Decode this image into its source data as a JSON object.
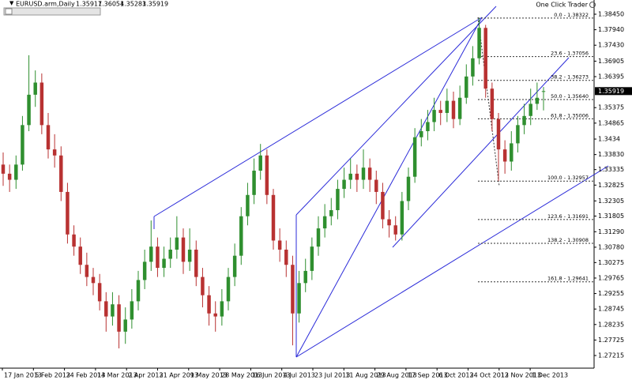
{
  "chart_data": {
    "type": "candlestick",
    "title": "EURUSD.arm,Daily",
    "header_ohlc": [
      1.35917,
      1.36054,
      1.35283,
      1.35919
    ],
    "trader_label": "One Click Trader",
    "current_price": 1.35919,
    "up_color": "#2f8f2f",
    "down_color": "#b83232",
    "ylim": [
      1.26799,
      1.38918
    ],
    "yticks": [
      {
        "value": 1.3845,
        "label": "1.38450"
      },
      {
        "value": 1.3794,
        "label": "1.37940"
      },
      {
        "value": 1.3743,
        "label": "1.37430"
      },
      1.36905,
      1.36395,
      1.35375,
      1.34865,
      1.3434,
      {
        "value": 1.3383,
        "label": "1.33830"
      },
      1.33335,
      1.32825,
      1.32305,
      1.31805,
      {
        "value": 1.3129,
        "label": "1.31290"
      },
      {
        "value": 1.3078,
        "label": "1.30780"
      },
      1.30275,
      1.29765,
      1.29255,
      1.28745,
      1.28235,
      1.27725,
      1.27215
    ],
    "x_tick_labels": [
      "17 Jan 2013",
      "5 Feb 2013",
      "24 Feb 2013",
      "14 Mar 2013",
      "2 Apr 2013",
      "21 Apr 2013",
      "9 May 2013",
      "28 May 2013",
      "16 Jun 2013",
      "4 Jul 2013",
      "23 Jul 2013",
      "11 Aug 2013",
      "29 Aug 2013",
      "17 Sep 2013",
      "6 Oct 2013",
      "24 Oct 2013",
      "12 Nov 2013",
      "1 Dec 2013"
    ],
    "fib_levels": [
      {
        "label": "0.0 - 1.38322",
        "value": 1.38322
      },
      {
        "label": "23.6 - 1.37056",
        "value": 1.37056
      },
      {
        "label": "38.2 - 1.36273",
        "value": 1.36273
      },
      {
        "label": "50.0 - 1.35640",
        "value": 1.3564
      },
      {
        "label": "61.8 - 1.35006",
        "value": 1.35006
      },
      {
        "label": "100.0 - 1.32957",
        "value": 1.32957
      },
      {
        "label": "123.6 - 1.31691",
        "value": 1.31691
      },
      {
        "label": "138.2 - 1.30908",
        "value": 1.30908
      },
      {
        "label": "161.8 - 1.29641",
        "value": 1.29641
      }
    ],
    "open": [
      1.335,
      1.332,
      1.33,
      1.335,
      1.348,
      1.358,
      1.362,
      1.348,
      1.34,
      1.338,
      1.326,
      1.312,
      1.308,
      1.302,
      1.298,
      1.296,
      1.29,
      1.285,
      1.289,
      1.28,
      1.284,
      1.29,
      1.297,
      1.303,
      1.308,
      1.301,
      1.304,
      1.307,
      1.311,
      1.303,
      1.307,
      1.298,
      1.292,
      1.286,
      1.285,
      1.29,
      1.298,
      1.305,
      1.318,
      1.325,
      1.333,
      1.338,
      1.325,
      1.31,
      1.307,
      1.302,
      1.286,
      1.296,
      1.3,
      1.308,
      1.314,
      1.318,
      1.32,
      1.327,
      1.33,
      1.332,
      1.33,
      1.334,
      1.33,
      1.326,
      1.317,
      1.315,
      1.312,
      1.323,
      1.331,
      1.344,
      1.346,
      1.349,
      1.353,
      1.352,
      1.356,
      1.35,
      1.357,
      1.364,
      1.37,
      1.38,
      1.36,
      1.35,
      1.34,
      1.336,
      1.342,
      1.348,
      1.351,
      1.355,
      1.35917
    ],
    "high": [
      1.339,
      1.335,
      1.338,
      1.351,
      1.371,
      1.366,
      1.365,
      1.352,
      1.345,
      1.341,
      1.329,
      1.315,
      1.311,
      1.306,
      1.301,
      1.299,
      1.293,
      1.293,
      1.292,
      1.288,
      1.294,
      1.3,
      1.307,
      1.3166,
      1.311,
      1.308,
      1.311,
      1.318,
      1.314,
      1.314,
      1.31,
      1.301,
      1.295,
      1.29,
      1.294,
      1.301,
      1.309,
      1.321,
      1.329,
      1.337,
      1.3418,
      1.34,
      1.327,
      1.314,
      1.31,
      1.305,
      1.3,
      1.304,
      1.311,
      1.318,
      1.322,
      1.324,
      1.33,
      1.334,
      1.337,
      1.335,
      1.34,
      1.337,
      1.333,
      1.329,
      1.32,
      1.318,
      1.326,
      1.334,
      1.347,
      1.35,
      1.353,
      1.357,
      1.356,
      1.36,
      1.359,
      1.361,
      1.368,
      1.374,
      1.3832,
      1.381,
      1.362,
      1.352,
      1.343,
      1.346,
      1.351,
      1.355,
      1.36,
      1.362,
      1.36054
    ],
    "low": [
      1.328,
      1.326,
      1.327,
      1.333,
      1.346,
      1.354,
      1.345,
      1.337,
      1.334,
      1.323,
      1.309,
      1.305,
      1.299,
      1.295,
      1.292,
      1.287,
      1.28,
      1.282,
      1.2745,
      1.276,
      1.281,
      1.287,
      1.294,
      1.3,
      1.298,
      1.298,
      1.301,
      1.304,
      1.299,
      1.3,
      1.295,
      1.288,
      1.282,
      1.28,
      1.282,
      1.287,
      1.295,
      1.302,
      1.315,
      1.322,
      1.33,
      1.322,
      1.307,
      1.303,
      1.298,
      1.2755,
      1.283,
      1.293,
      1.297,
      1.305,
      1.311,
      1.315,
      1.317,
      1.324,
      1.327,
      1.326,
      1.327,
      1.326,
      1.322,
      1.314,
      1.311,
      1.31,
      1.31,
      1.32,
      1.329,
      1.341,
      1.343,
      1.346,
      1.348,
      1.349,
      1.347,
      1.348,
      1.355,
      1.361,
      1.368,
      1.357,
      1.346,
      1.3296,
      1.332,
      1.333,
      1.339,
      1.345,
      1.348,
      1.353,
      1.35283
    ],
    "close": [
      1.332,
      1.33,
      1.335,
      1.348,
      1.358,
      1.362,
      1.348,
      1.34,
      1.338,
      1.326,
      1.312,
      1.308,
      1.302,
      1.298,
      1.296,
      1.29,
      1.285,
      1.289,
      1.28,
      1.284,
      1.29,
      1.297,
      1.303,
      1.308,
      1.301,
      1.304,
      1.307,
      1.311,
      1.303,
      1.307,
      1.298,
      1.292,
      1.286,
      1.285,
      1.29,
      1.298,
      1.305,
      1.318,
      1.325,
      1.333,
      1.338,
      1.325,
      1.31,
      1.307,
      1.302,
      1.286,
      1.296,
      1.3,
      1.308,
      1.314,
      1.318,
      1.32,
      1.327,
      1.33,
      1.332,
      1.33,
      1.334,
      1.33,
      1.326,
      1.317,
      1.315,
      1.312,
      1.323,
      1.331,
      1.344,
      1.346,
      1.349,
      1.353,
      1.352,
      1.356,
      1.35,
      1.357,
      1.364,
      1.37,
      1.38,
      1.36,
      1.35,
      1.34,
      1.336,
      1.342,
      1.348,
      1.351,
      1.355,
      1.357,
      1.35919
    ]
  }
}
